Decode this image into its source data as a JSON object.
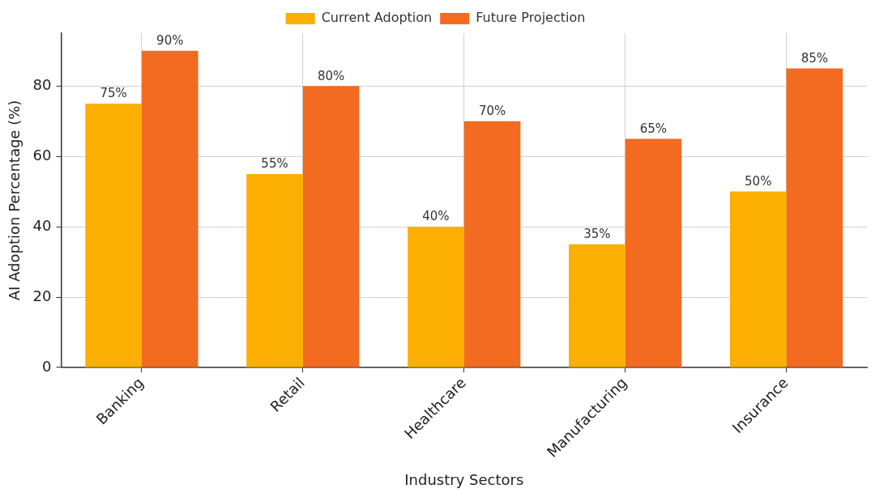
{
  "chart_data": {
    "type": "bar",
    "xlabel": "Industry Sectors",
    "ylabel": "AI Adoption Percentage (%)",
    "categories": [
      "Banking",
      "Retail",
      "Healthcare",
      "Manufacturing",
      "Insurance"
    ],
    "series": [
      {
        "name": "Current Adoption",
        "color": "#fcaf03",
        "values": [
          75,
          55,
          40,
          35,
          50
        ],
        "value_labels": [
          "75%",
          "55%",
          "40%",
          "35%",
          "50%"
        ]
      },
      {
        "name": "Future Projection",
        "color": "#f26b21",
        "values": [
          90,
          80,
          70,
          65,
          85
        ],
        "value_labels": [
          "90%",
          "80%",
          "70%",
          "65%",
          "85%"
        ]
      }
    ],
    "ylim": [
      0,
      95
    ],
    "yticks": [
      0,
      20,
      40,
      60,
      80
    ],
    "grid": true,
    "legend": "top"
  }
}
